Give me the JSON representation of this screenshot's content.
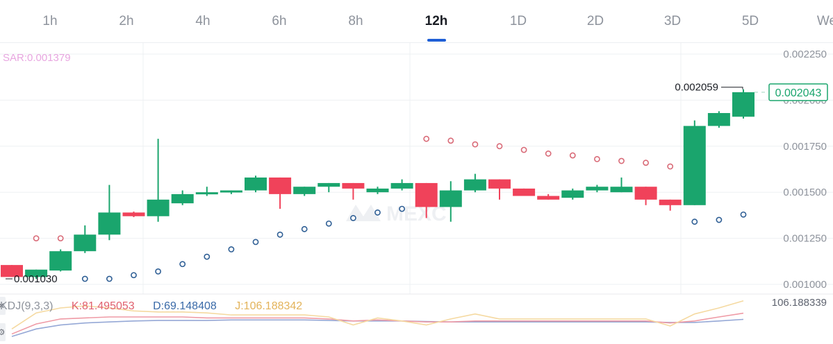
{
  "tabs": [
    {
      "label": "1h",
      "active": false
    },
    {
      "label": "2h",
      "active": false
    },
    {
      "label": "4h",
      "active": false
    },
    {
      "label": "6h",
      "active": false
    },
    {
      "label": "8h",
      "active": false
    },
    {
      "label": "12h",
      "active": true
    },
    {
      "label": "1D",
      "active": false
    },
    {
      "label": "2D",
      "active": false
    },
    {
      "label": "3D",
      "active": false
    },
    {
      "label": "5D",
      "active": false
    },
    {
      "label": "We",
      "active": false
    }
  ],
  "watermark": "MEXC",
  "indicators": {
    "sar_label": "SAR:0.001379",
    "kdj_name": "KDJ(9,3,3)",
    "kdj_k": "K:81.495053",
    "kdj_d": "D:69.148408",
    "kdj_j": "J:106.188342",
    "kdj_axis_max": "106.188339"
  },
  "colors": {
    "up": "#1aa56d",
    "down": "#f0425a",
    "sar_above": "#d96b78",
    "sar_below": "#2f5f95",
    "k_line": "#ef9aa5",
    "d_line": "#95a8d6",
    "j_line": "#f5d9a0",
    "price_tag": "#1aa56d",
    "sar_text": "#e8a6e0",
    "k_text": "#e0606e",
    "d_text": "#3a6aa8",
    "j_text": "#e3b35a",
    "kdj_name_text": "#8e939c"
  },
  "chart_data": {
    "type": "candlestick",
    "y_ticks": [
      "0.002250",
      "0.002000",
      "0.001750",
      "0.001500",
      "0.001250",
      "0.001000"
    ],
    "y_tick_values": [
      0.00225,
      0.002,
      0.00175,
      0.0015,
      0.00125,
      0.001
    ],
    "ylim": [
      0.00095,
      0.00233
    ],
    "high_label": "0.002059",
    "high_value": 0.002059,
    "low_label": "0.001030",
    "low_value": 0.00103,
    "last_price_label": "0.002043",
    "last_price": 0.002043,
    "candles": [
      {
        "o": 0.001105,
        "h": 0.001105,
        "l": 0.00104,
        "c": 0.00104
      },
      {
        "o": 0.00104,
        "h": 0.00108,
        "l": 0.00103,
        "c": 0.00108
      },
      {
        "o": 0.001075,
        "h": 0.00119,
        "l": 0.00107,
        "c": 0.00118
      },
      {
        "o": 0.00118,
        "h": 0.00132,
        "l": 0.00117,
        "c": 0.00127
      },
      {
        "o": 0.00127,
        "h": 0.00154,
        "l": 0.00124,
        "c": 0.00139
      },
      {
        "o": 0.00139,
        "h": 0.001395,
        "l": 0.001365,
        "c": 0.00137
      },
      {
        "o": 0.00137,
        "h": 0.00179,
        "l": 0.00134,
        "c": 0.00146
      },
      {
        "o": 0.00144,
        "h": 0.00151,
        "l": 0.00143,
        "c": 0.00149
      },
      {
        "o": 0.00149,
        "h": 0.00153,
        "l": 0.00148,
        "c": 0.0015
      },
      {
        "o": 0.0015,
        "h": 0.00151,
        "l": 0.00149,
        "c": 0.00151
      },
      {
        "o": 0.00151,
        "h": 0.00159,
        "l": 0.0015,
        "c": 0.00158
      },
      {
        "o": 0.00158,
        "h": 0.00158,
        "l": 0.00141,
        "c": 0.00149
      },
      {
        "o": 0.00149,
        "h": 0.00153,
        "l": 0.00148,
        "c": 0.00153
      },
      {
        "o": 0.00153,
        "h": 0.00155,
        "l": 0.0015,
        "c": 0.00155
      },
      {
        "o": 0.00155,
        "h": 0.00155,
        "l": 0.00146,
        "c": 0.00152
      },
      {
        "o": 0.0015,
        "h": 0.00153,
        "l": 0.00149,
        "c": 0.00152
      },
      {
        "o": 0.00152,
        "h": 0.00157,
        "l": 0.00151,
        "c": 0.00155
      },
      {
        "o": 0.00155,
        "h": 0.00155,
        "l": 0.00136,
        "c": 0.00142
      },
      {
        "o": 0.00142,
        "h": 0.00156,
        "l": 0.00134,
        "c": 0.00151
      },
      {
        "o": 0.00151,
        "h": 0.0016,
        "l": 0.0015,
        "c": 0.00157
      },
      {
        "o": 0.00157,
        "h": 0.00157,
        "l": 0.00146,
        "c": 0.00152
      },
      {
        "o": 0.00152,
        "h": 0.00152,
        "l": 0.00148,
        "c": 0.00148
      },
      {
        "o": 0.00148,
        "h": 0.00149,
        "l": 0.00146,
        "c": 0.00146
      },
      {
        "o": 0.00147,
        "h": 0.00152,
        "l": 0.00146,
        "c": 0.00151
      },
      {
        "o": 0.00151,
        "h": 0.00154,
        "l": 0.0015,
        "c": 0.00153
      },
      {
        "o": 0.0015,
        "h": 0.00158,
        "l": 0.0015,
        "c": 0.00153
      },
      {
        "o": 0.00153,
        "h": 0.00153,
        "l": 0.00143,
        "c": 0.00146
      },
      {
        "o": 0.00146,
        "h": 0.00146,
        "l": 0.0014,
        "c": 0.00143
      },
      {
        "o": 0.00143,
        "h": 0.00189,
        "l": 0.00143,
        "c": 0.00186
      },
      {
        "o": 0.00186,
        "h": 0.00194,
        "l": 0.00185,
        "c": 0.00193
      },
      {
        "o": 0.00191,
        "h": 0.002059,
        "l": 0.0019,
        "c": 0.002043
      }
    ],
    "sar": [
      null,
      0.00125,
      0.00125,
      0.00103,
      0.00103,
      0.00105,
      0.00107,
      0.00111,
      0.00115,
      0.00119,
      0.00123,
      0.00127,
      0.0013,
      0.00133,
      0.00136,
      0.00139,
      0.00141,
      0.00179,
      0.00178,
      0.00176,
      0.00175,
      0.00173,
      0.00171,
      0.0017,
      0.00168,
      0.00167,
      0.00166,
      0.00164,
      0.00134,
      0.00135,
      0.001379
    ],
    "sar_side": [
      null,
      "above",
      "above",
      "below",
      "below",
      "below",
      "below",
      "below",
      "below",
      "below",
      "below",
      "below",
      "below",
      "below",
      "below",
      "below",
      "below",
      "above",
      "above",
      "above",
      "above",
      "above",
      "above",
      "above",
      "above",
      "above",
      "above",
      "above",
      "below",
      "below",
      "below"
    ],
    "kdj": {
      "K": [
        40,
        60,
        70,
        72,
        74,
        74,
        74,
        74,
        72,
        72,
        72,
        72,
        72,
        70,
        66,
        68,
        66,
        64,
        64,
        66,
        66,
        66,
        66,
        66,
        66,
        66,
        66,
        62,
        66,
        74,
        81.495053
      ],
      "D": [
        35,
        50,
        58,
        62,
        64,
        66,
        67,
        67,
        67,
        68,
        68,
        68,
        68,
        67,
        66,
        66,
        66,
        65,
        64,
        64,
        64,
        64,
        64,
        64,
        64,
        64,
        64,
        63,
        63,
        66,
        69.148408
      ],
      "J": [
        50,
        82,
        92,
        96,
        92,
        86,
        84,
        84,
        82,
        78,
        78,
        78,
        78,
        74,
        58,
        72,
        66,
        58,
        70,
        80,
        70,
        70,
        70,
        70,
        70,
        70,
        70,
        56,
        80,
        92,
        106.188342
      ]
    }
  }
}
